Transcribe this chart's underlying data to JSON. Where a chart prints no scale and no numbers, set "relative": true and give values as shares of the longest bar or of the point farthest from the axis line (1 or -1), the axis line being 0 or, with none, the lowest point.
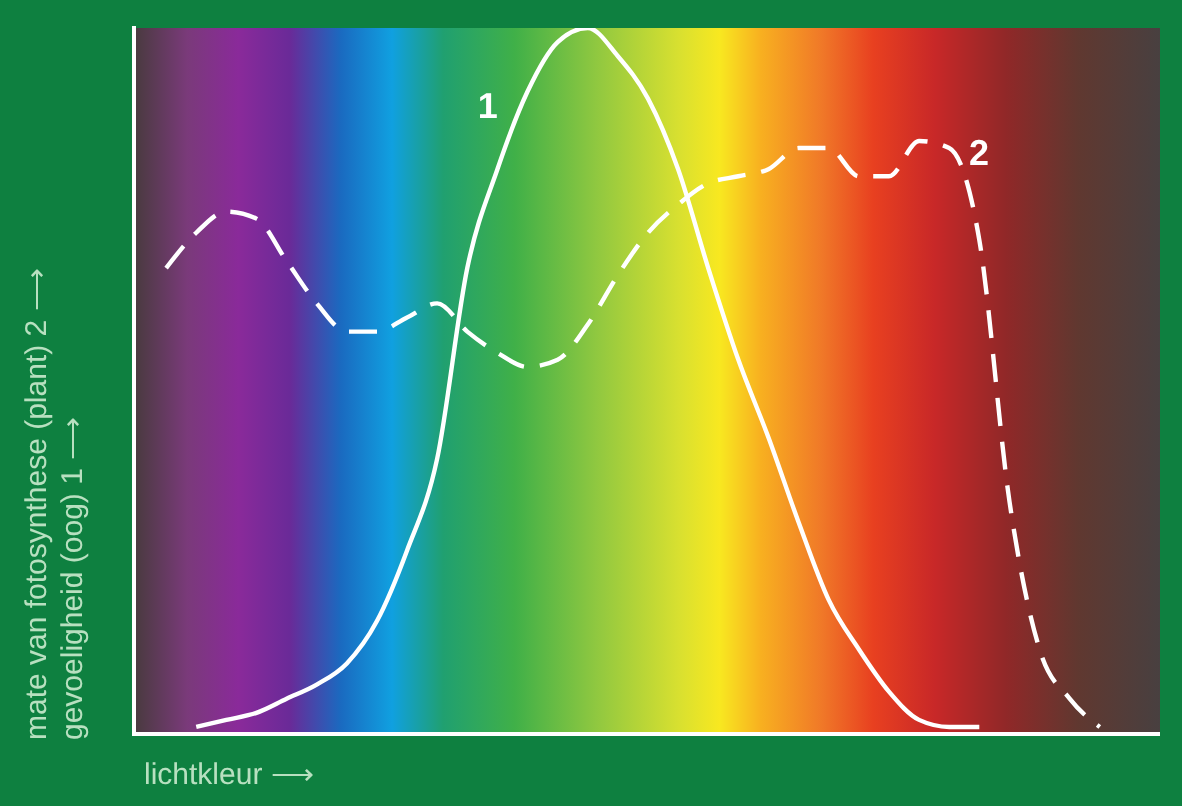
{
  "chart_data": {
    "type": "line",
    "relative": true,
    "xlabel": "lichtkleur ⟶",
    "ylabel": "mate van fotosynthese (plant) 2 ⟶\ngevoeligheid (oog) 1 ⟶",
    "legend": false,
    "marker": "none",
    "categories": [
      null,
      null,
      null,
      null,
      null,
      null,
      null,
      null,
      null,
      null,
      null,
      null,
      null,
      null,
      null,
      null,
      null,
      null,
      null,
      null,
      null,
      null,
      null,
      null,
      null,
      null,
      null,
      null,
      null,
      null,
      null,
      null,
      null,
      null,
      null
    ],
    "series": [
      {
        "name": "1",
        "color": "#ffffff",
        "line_style": "solid",
        "values": [
          null,
          null,
          0.01,
          0.02,
          0.03,
          0.05,
          0.07,
          0.1,
          0.16,
          0.26,
          0.39,
          0.66,
          0.8,
          0.91,
          0.98,
          1,
          0.96,
          0.9,
          0.8,
          0.66,
          0.53,
          0.42,
          0.3,
          0.19,
          0.12,
          0.06,
          0.02,
          0.01,
          0.01,
          null,
          null,
          null,
          null,
          null,
          null
        ]
      },
      {
        "name": "2",
        "color": "#ffffff",
        "line_style": "dashed",
        "values": [
          null,
          0.66,
          0.71,
          0.74,
          0.73,
          0.67,
          0.61,
          0.57,
          0.57,
          0.59,
          0.61,
          0.57,
          0.54,
          0.52,
          0.53,
          0.58,
          0.65,
          0.71,
          0.75,
          0.78,
          0.79,
          0.8,
          0.83,
          0.83,
          0.79,
          0.79,
          0.84,
          0.83,
          0.7,
          0.33,
          0.12,
          0.05,
          0.01,
          null,
          null
        ]
      }
    ]
  }
}
